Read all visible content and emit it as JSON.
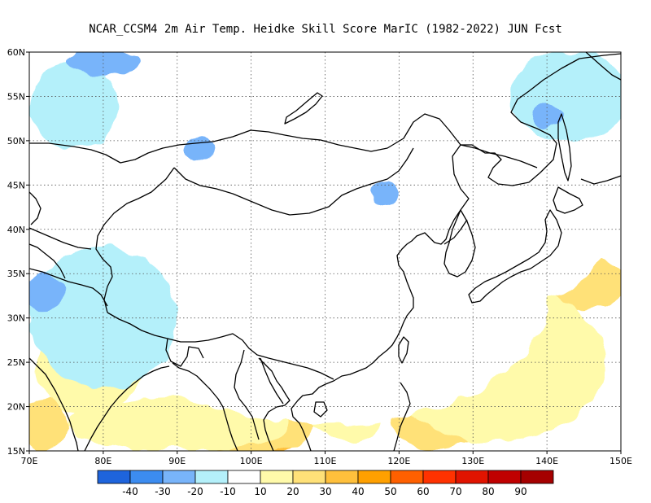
{
  "title": "NCAR_CCSM4  2m Air Temp. Heidke Skill Score MarIC (1982-2022) JUN Fcst",
  "map": {
    "lon_range": [
      70,
      150
    ],
    "lat_range": [
      15,
      60
    ],
    "lon_ticks": [
      {
        "value": 70,
        "label": "70E"
      },
      {
        "value": 80,
        "label": "80E"
      },
      {
        "value": 90,
        "label": "90E"
      },
      {
        "value": 100,
        "label": "100E"
      },
      {
        "value": 110,
        "label": "110E"
      },
      {
        "value": 120,
        "label": "120E"
      },
      {
        "value": 130,
        "label": "130E"
      },
      {
        "value": 140,
        "label": "140E"
      },
      {
        "value": 150,
        "label": "150E"
      }
    ],
    "lat_ticks": [
      {
        "value": 15,
        "label": "15N"
      },
      {
        "value": 20,
        "label": "20N"
      },
      {
        "value": 25,
        "label": "25N"
      },
      {
        "value": 30,
        "label": "30N"
      },
      {
        "value": 35,
        "label": "35N"
      },
      {
        "value": 40,
        "label": "40N"
      },
      {
        "value": 45,
        "label": "45N"
      },
      {
        "value": 50,
        "label": "50N"
      },
      {
        "value": 55,
        "label": "55N"
      },
      {
        "value": 60,
        "label": "60N"
      }
    ],
    "grid": true
  },
  "colorbar": {
    "colors": [
      "#1e64dc",
      "#3c8cf0",
      "#78b4fa",
      "#b4f0fa",
      "#ffffff",
      "#fffaaa",
      "#ffe178",
      "#ffc03c",
      "#ffa000",
      "#ff6000",
      "#ff3200",
      "#e11400",
      "#c00000",
      "#a50000"
    ],
    "labels": [
      "-40",
      "-30",
      "-20",
      "-10",
      "10",
      "20",
      "30",
      "40",
      "50",
      "60",
      "70",
      "80",
      "90"
    ]
  },
  "field_regions": [
    {
      "level": 7,
      "lon": 103,
      "lat": 16.5,
      "rlon": 3.0,
      "rlat": 2.0
    },
    {
      "level": 6,
      "lon": 100,
      "lat": 18.5,
      "rlon": 9.0,
      "rlat": 4.0
    },
    {
      "level": 6,
      "lon": 72,
      "lat": 18,
      "rlon": 3.0,
      "rlat": 3.0
    },
    {
      "level": 6,
      "lon": 145,
      "lat": 34,
      "rlon": 6.0,
      "rlat": 3.0
    },
    {
      "level": 6,
      "lon": 134,
      "lat": 28,
      "rlon": 6.0,
      "rlat": 4.0
    },
    {
      "level": 6,
      "lon": 125,
      "lat": 19,
      "rlon": 6.0,
      "rlat": 4.0
    },
    {
      "level": 5,
      "lon": 90,
      "lat": 18,
      "rlon": 15.0,
      "rlat": 3.0
    },
    {
      "level": 5,
      "lon": 120,
      "lat": 33,
      "rlon": 6.0,
      "rlat": 5.0
    },
    {
      "level": 5,
      "lon": 133,
      "lat": 25,
      "rlon": 15.0,
      "rlat": 9.0
    },
    {
      "level": 5,
      "lon": 106,
      "lat": 30,
      "rlon": 6.0,
      "rlat": 5.0
    },
    {
      "level": 5,
      "lon": 78,
      "lat": 25,
      "rlon": 7.0,
      "rlat": 6.0
    },
    {
      "level": 5,
      "lon": 113,
      "lat": 20,
      "rlon": 5.0,
      "rlat": 4.0
    },
    {
      "level": 4,
      "lon": 110,
      "lat": 32,
      "rlon": 30.0,
      "rlat": 14.0
    },
    {
      "level": 4,
      "lon": 138,
      "lat": 45,
      "rlon": 12.0,
      "rlat": 13.0
    },
    {
      "level": 4,
      "lon": 85,
      "lat": 50,
      "rlon": 15.0,
      "rlat": 5.0
    },
    {
      "level": 4,
      "lon": 110,
      "lat": 55,
      "rlon": 14.0,
      "rlat": 4.0
    },
    {
      "level": 4,
      "lon": 85,
      "lat": 38,
      "rlon": 14.0,
      "rlat": 4.0
    },
    {
      "level": 4,
      "lon": 125,
      "lat": 47,
      "rlon": 6.0,
      "rlat": 6.0
    },
    {
      "level": 3,
      "lon": 80,
      "lat": 30,
      "rlon": 10.0,
      "rlat": 8.0
    },
    {
      "level": 3,
      "lon": 143,
      "lat": 55,
      "rlon": 8.0,
      "rlat": 5.0
    },
    {
      "level": 3,
      "lon": 76,
      "lat": 54,
      "rlon": 6.0,
      "rlat": 5.0
    },
    {
      "level": 2,
      "lon": 80,
      "lat": 59,
      "rlon": 5.0,
      "rlat": 1.5
    },
    {
      "level": 2,
      "lon": 72,
      "lat": 33,
      "rlon": 2.5,
      "rlat": 2.0
    },
    {
      "level": 2,
      "lon": 140,
      "lat": 53,
      "rlon": 2.0,
      "rlat": 1.5
    },
    {
      "level": 2,
      "lon": 93,
      "lat": 49,
      "rlon": 2.0,
      "rlat": 1.5
    },
    {
      "level": 2,
      "lon": 118,
      "lat": 44,
      "rlon": 2.0,
      "rlat": 1.5
    }
  ]
}
